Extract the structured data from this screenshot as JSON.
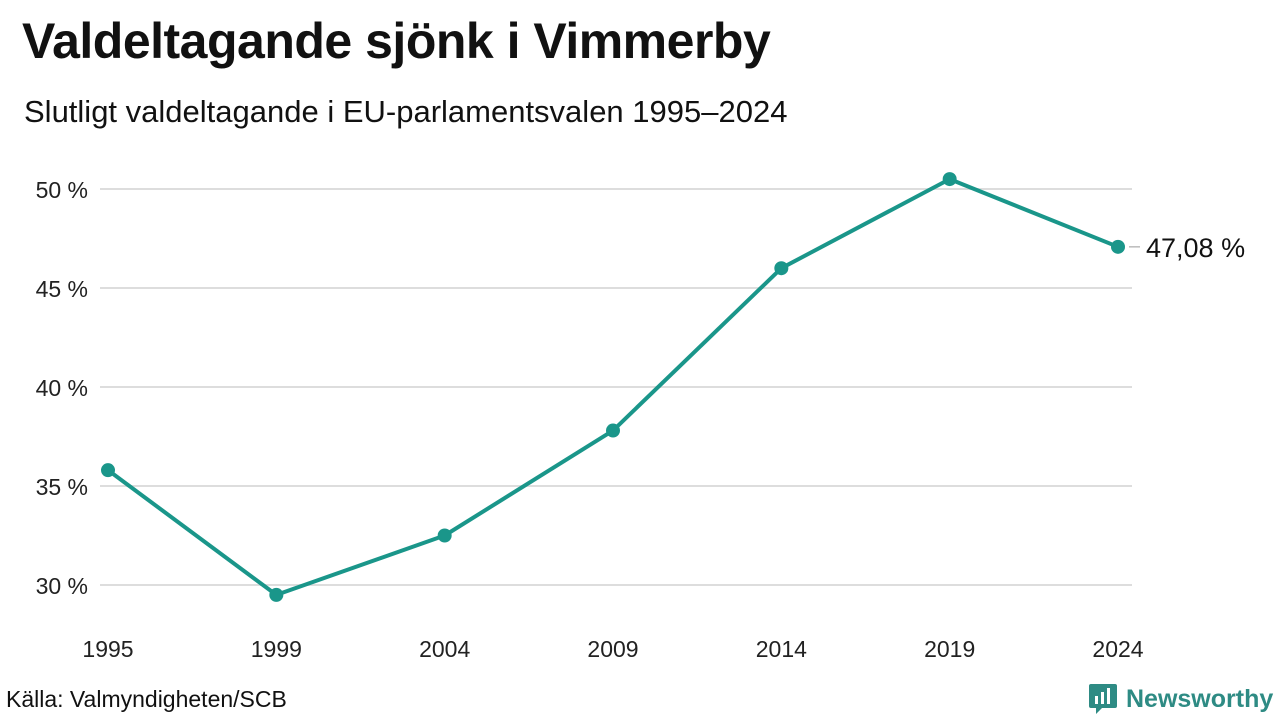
{
  "title": "Valdeltagande sjönk i Vimmerby",
  "subtitle": "Slutligt valdeltagande i EU-parlamentsvalen 1995–2024",
  "source": "Källa: Valmyndigheten/SCB",
  "brand": {
    "name": "Newsworthy",
    "icon": "bar-chart-logo-icon",
    "color": "#2e8b84"
  },
  "chart_data": {
    "type": "line",
    "title": "Valdeltagande sjönk i Vimmerby",
    "subtitle": "Slutligt valdeltagande i EU-parlamentsvalen 1995–2024",
    "xlabel": "",
    "ylabel": "",
    "categories": [
      "1995",
      "1999",
      "2004",
      "2009",
      "2014",
      "2019",
      "2024"
    ],
    "series": [
      {
        "values": [
          35.8,
          29.5,
          32.5,
          37.8,
          46.0,
          50.5,
          47.08
        ],
        "color": "#1a968a"
      }
    ],
    "ylim": [
      28,
      51
    ],
    "yticks": [
      {
        "value": 30,
        "label": "30 %"
      },
      {
        "value": 35,
        "label": "35 %"
      },
      {
        "value": 40,
        "label": "40 %"
      },
      {
        "value": 45,
        "label": "45 %"
      },
      {
        "value": 50,
        "label": "50 %"
      }
    ],
    "end_label": "47,08 %",
    "grid": true,
    "gridColor": "#dddddd",
    "legend": "none"
  }
}
